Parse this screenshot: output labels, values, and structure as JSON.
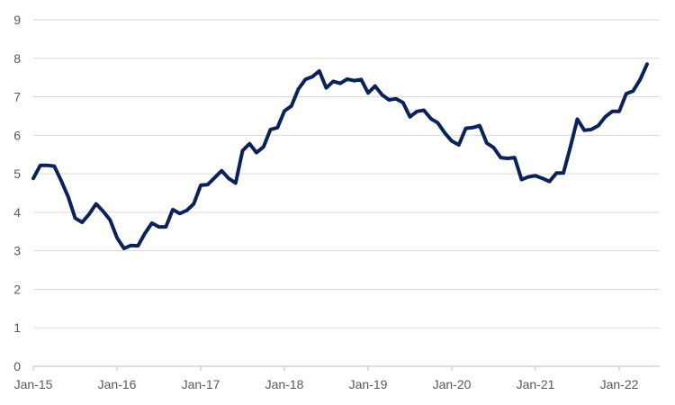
{
  "chart_data": {
    "type": "line",
    "title": "",
    "xlabel": "",
    "ylabel": "",
    "ylim": [
      0,
      9
    ],
    "y_ticks": [
      0,
      1,
      2,
      3,
      4,
      5,
      6,
      7,
      8,
      9
    ],
    "x_tick_labels": [
      "Jan-15",
      "Jan-16",
      "Jan-17",
      "Jan-18",
      "Jan-19",
      "Jan-20",
      "Jan-21",
      "Jan-22"
    ],
    "grid": true,
    "legend": "none",
    "line_color": "#0b2259",
    "series": [
      {
        "x": [
          "2015-01",
          "2015-02",
          "2015-03",
          "2015-04",
          "2015-05",
          "2015-06",
          "2015-07",
          "2015-08",
          "2015-09",
          "2015-10",
          "2015-11",
          "2015-12",
          "2016-01",
          "2016-02",
          "2016-03",
          "2016-04",
          "2016-05",
          "2016-06",
          "2016-07",
          "2016-08",
          "2016-09",
          "2016-10",
          "2016-11",
          "2016-12",
          "2017-01",
          "2017-02",
          "2017-03",
          "2017-04",
          "2017-05",
          "2017-06",
          "2017-07",
          "2017-08",
          "2017-09",
          "2017-10",
          "2017-11",
          "2017-12",
          "2018-01",
          "2018-02",
          "2018-03",
          "2018-04",
          "2018-05",
          "2018-06",
          "2018-07",
          "2018-08",
          "2018-09",
          "2018-10",
          "2018-11",
          "2018-12",
          "2019-01",
          "2019-02",
          "2019-03",
          "2019-04",
          "2019-05",
          "2019-06",
          "2019-07",
          "2019-08",
          "2019-09",
          "2019-10",
          "2019-11",
          "2019-12",
          "2020-01",
          "2020-02",
          "2020-03",
          "2020-04",
          "2020-05",
          "2020-06",
          "2020-07",
          "2020-08",
          "2020-09",
          "2020-10",
          "2020-11",
          "2020-12",
          "2021-01",
          "2021-02",
          "2021-03",
          "2021-04",
          "2021-05",
          "2021-06",
          "2021-07",
          "2021-08",
          "2021-09",
          "2021-10",
          "2021-11",
          "2021-12",
          "2022-01",
          "2022-02",
          "2022-03",
          "2022-04",
          "2022-05"
        ],
        "values": [
          4.88,
          5.22,
          5.22,
          5.2,
          4.82,
          4.4,
          3.85,
          3.74,
          3.95,
          4.22,
          4.03,
          3.8,
          3.34,
          3.06,
          3.14,
          3.13,
          3.45,
          3.72,
          3.62,
          3.62,
          4.07,
          3.97,
          4.05,
          4.22,
          4.7,
          4.72,
          4.9,
          5.08,
          4.88,
          4.76,
          5.6,
          5.78,
          5.55,
          5.7,
          6.15,
          6.2,
          6.63,
          6.76,
          7.2,
          7.45,
          7.52,
          7.67,
          7.23,
          7.4,
          7.35,
          7.46,
          7.42,
          7.45,
          7.1,
          7.28,
          7.05,
          6.92,
          6.95,
          6.85,
          6.48,
          6.62,
          6.65,
          6.43,
          6.32,
          6.06,
          5.85,
          5.75,
          6.18,
          6.2,
          6.25,
          5.8,
          5.68,
          5.42,
          5.4,
          5.42,
          4.85,
          4.92,
          4.95,
          4.88,
          4.8,
          5.02,
          5.02,
          5.7,
          6.42,
          6.13,
          6.15,
          6.25,
          6.48,
          6.62,
          6.62,
          7.08,
          7.15,
          7.45,
          7.85
        ]
      }
    ]
  }
}
